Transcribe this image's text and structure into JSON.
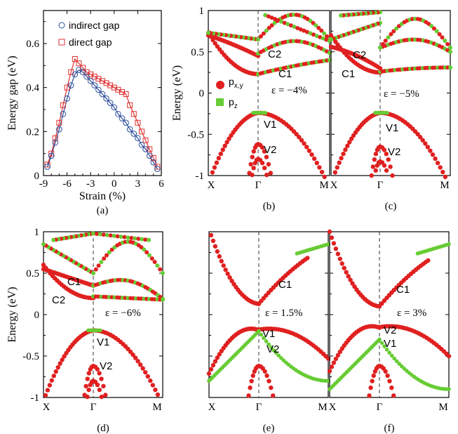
{
  "colors": {
    "indirect": "#2b4c9b",
    "direct": "#e03030",
    "pxy": "#e02020",
    "pz": "#66cc33",
    "axis": "#000000",
    "gamma_line": "#333333"
  },
  "chart_data": [
    {
      "panel": "(a)",
      "type": "line",
      "title": "",
      "xlabel": "Strain (%)",
      "ylabel": "Energy gap (eV)",
      "xlim": [
        -9,
        6
      ],
      "ylim": [
        0,
        0.75
      ],
      "xticks": [
        -9,
        -6,
        -3,
        0,
        3,
        6
      ],
      "xtick_labels": [
        "-9",
        "-6",
        "-3",
        "0",
        "3",
        "6"
      ],
      "yticks": [
        0,
        0.2,
        0.4,
        0.6
      ],
      "ytick_labels": [
        "0",
        "0.2",
        "0.4",
        "0.6"
      ],
      "legend": {
        "position": "top-right",
        "entries": [
          "indirect gap",
          "direct gap"
        ]
      },
      "series": [
        {
          "name": "indirect gap",
          "marker": "circle",
          "x": [
            -8.5,
            -8,
            -7.5,
            -7,
            -6.5,
            -6,
            -5.5,
            -5,
            -4.5,
            -4,
            -3.5,
            -3,
            -2.5,
            -2,
            -1.5,
            -1,
            -0.5,
            0,
            0.5,
            1,
            1.5,
            2,
            2.5,
            3,
            3.5,
            4,
            4.5,
            5,
            5.5
          ],
          "y": [
            0.04,
            0.09,
            0.15,
            0.21,
            0.28,
            0.35,
            0.41,
            0.46,
            0.48,
            0.47,
            0.45,
            0.43,
            0.41,
            0.39,
            0.37,
            0.35,
            0.33,
            0.31,
            0.28,
            0.26,
            0.24,
            0.21,
            0.19,
            0.17,
            0.14,
            0.12,
            0.09,
            0.06,
            0.03
          ]
        },
        {
          "name": "direct gap",
          "marker": "square",
          "x": [
            -8.5,
            -8,
            -7.5,
            -7,
            -6.5,
            -6,
            -5.5,
            -5,
            -4.5,
            -4,
            -3.5,
            -3,
            -2.5,
            -2,
            -1.5,
            -1,
            -0.5,
            0,
            0.5,
            1,
            1.5,
            2,
            2.5,
            3,
            3.5,
            4,
            4.5,
            5,
            5.5
          ],
          "y": [
            0.05,
            0.1,
            0.17,
            0.24,
            0.32,
            0.4,
            0.47,
            0.53,
            0.51,
            0.49,
            0.47,
            0.46,
            0.45,
            0.44,
            0.43,
            0.42,
            0.41,
            0.4,
            0.39,
            0.38,
            0.37,
            0.32,
            0.28,
            0.24,
            0.2,
            0.16,
            0.12,
            0.08,
            0.04
          ]
        }
      ]
    },
    {
      "panel": "(b)",
      "type": "band-structure",
      "strain_label": "ε = −4%",
      "ylabel": "Energy (eV)",
      "ylim": [
        -1,
        1
      ],
      "yticks": [
        1,
        0.5,
        0,
        -0.5,
        -1
      ],
      "ytick_labels": [
        "1",
        "0.5",
        "0",
        "-0.5",
        "-1"
      ],
      "kpoints": [
        "X",
        "Γ",
        "M"
      ],
      "legend": [
        "p_x,y",
        "p_z"
      ],
      "annotations": [
        "C2",
        "C1",
        "V1",
        "V2"
      ]
    },
    {
      "panel": "(c)",
      "type": "band-structure",
      "strain_label": "ε = −5%",
      "ylim": [
        -1,
        1
      ],
      "kpoints": [
        "X",
        "Γ",
        "M"
      ],
      "annotations": [
        "C2",
        "C1",
        "V1",
        "V2"
      ]
    },
    {
      "panel": "(d)",
      "type": "band-structure",
      "strain_label": "ε = −6%",
      "ylabel": "Energy (eV)",
      "ylim": [
        -1,
        1
      ],
      "yticks": [
        1,
        0.5,
        0,
        -0.5,
        -1
      ],
      "ytick_labels": [
        "1",
        "0.5",
        "0",
        "-0.5",
        "-1"
      ],
      "kpoints": [
        "X",
        "Γ",
        "M"
      ],
      "annotations": [
        "C1",
        "C2",
        "V1",
        "V2"
      ]
    },
    {
      "panel": "(e)",
      "type": "band-structure",
      "strain_label": "ε = 1.5%",
      "ylim": [
        -1,
        1
      ],
      "kpoints": [
        "X",
        "Γ",
        "M"
      ],
      "annotations": [
        "C1",
        "V1",
        "V2"
      ]
    },
    {
      "panel": "(f)",
      "type": "band-structure",
      "strain_label": "ε = 3%",
      "ylim": [
        -1,
        1
      ],
      "kpoints": [
        "X",
        "Γ",
        "M"
      ],
      "annotations": [
        "C1",
        "V2",
        "V1"
      ]
    }
  ]
}
